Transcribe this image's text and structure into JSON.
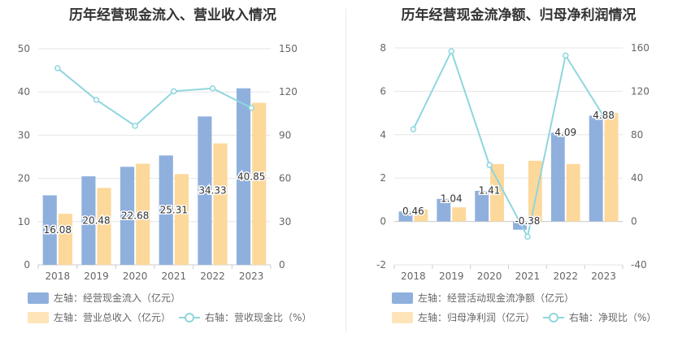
{
  "chart_data": [
    {
      "type": "bar",
      "title": "历年经营现金流入、营业收入情况",
      "categories": [
        "2018",
        "2019",
        "2020",
        "2021",
        "2022",
        "2023"
      ],
      "left_axis": {
        "min": 0,
        "max": 50,
        "ticks": [
          "0",
          "10",
          "20",
          "30",
          "40",
          "50"
        ]
      },
      "right_axis": {
        "min": 0,
        "max": 150,
        "ticks": [
          "0",
          "30",
          "60",
          "90",
          "120",
          "150"
        ]
      },
      "series": [
        {
          "name": "左轴：经营现金流入（亿元）",
          "type": "bar",
          "axis": "left",
          "color": "#8fb0dd",
          "values": [
            16.08,
            20.48,
            22.68,
            25.31,
            34.33,
            40.85
          ],
          "labels": [
            "16.08",
            "20.48",
            "22.68",
            "25.31",
            "34.33",
            "40.85"
          ]
        },
        {
          "name": "左轴：营业总收入（亿元）",
          "type": "bar",
          "axis": "left",
          "color": "#fdd89b",
          "values": [
            11.8,
            17.8,
            23.4,
            21.0,
            28.1,
            37.5
          ]
        },
        {
          "name": "右轴：营收现金比（%）",
          "type": "line",
          "axis": "right",
          "color": "#8fd6de",
          "values": [
            136.5,
            114.5,
            96.5,
            120.5,
            122.5,
            109.0
          ]
        }
      ],
      "grid": true,
      "legend": "bottom"
    },
    {
      "type": "bar",
      "title": "历年经营现金流净额、归母净利润情况",
      "categories": [
        "2018",
        "2019",
        "2020",
        "2021",
        "2022",
        "2023"
      ],
      "left_axis": {
        "min": -2,
        "max": 8,
        "ticks": [
          "-2",
          "0",
          "2",
          "4",
          "6",
          "8"
        ]
      },
      "right_axis": {
        "min": -40,
        "max": 160,
        "ticks": [
          "-40",
          "0",
          "40",
          "80",
          "120",
          "160"
        ]
      },
      "series": [
        {
          "name": "左轴：经营活动现金流净额（亿元）",
          "type": "bar",
          "axis": "left",
          "color": "#8fb0dd",
          "values": [
            0.46,
            1.04,
            1.41,
            -0.38,
            4.09,
            4.88
          ],
          "labels": [
            "0.46",
            "1.04",
            "1.41",
            "-0.38",
            "4.09",
            "4.88"
          ]
        },
        {
          "name": "左轴：归母净利润（亿元）",
          "type": "bar",
          "axis": "left",
          "color": "#fdd89b",
          "values": [
            0.55,
            0.65,
            2.65,
            2.8,
            2.65,
            5.0
          ]
        },
        {
          "name": "右轴：净现比（%）",
          "type": "line",
          "axis": "right",
          "color": "#8fd6de",
          "values": [
            85,
            157,
            52,
            -14,
            153,
            97
          ]
        }
      ],
      "grid": true,
      "legend": "bottom"
    }
  ]
}
